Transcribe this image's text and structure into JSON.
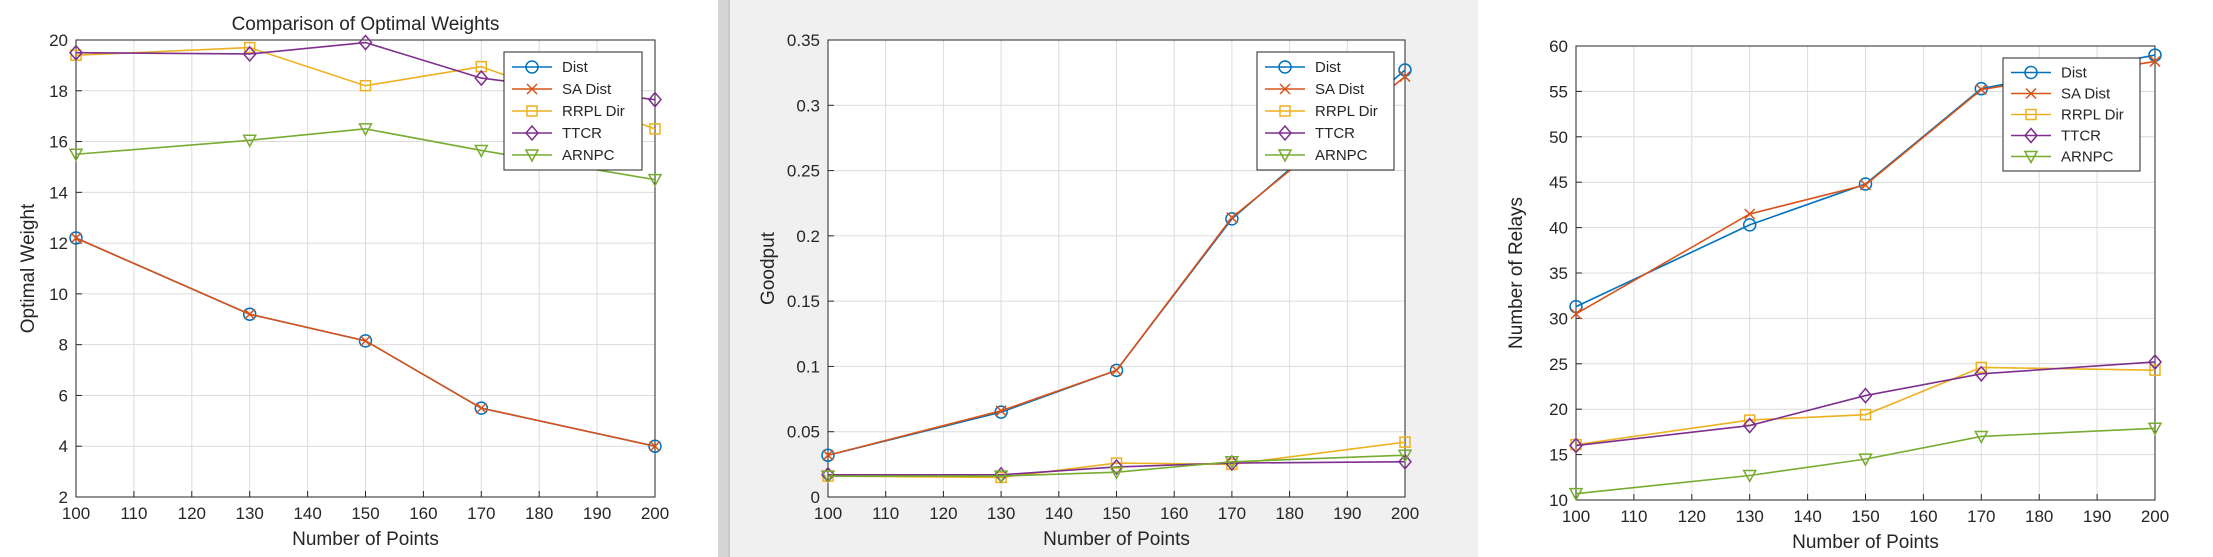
{
  "chart_data": [
    {
      "type": "line",
      "title": "Comparison of Optimal Weights",
      "xlabel": "Number of Points",
      "ylabel": "Optimal Weight",
      "xlim": [
        100,
        200
      ],
      "ylim": [
        2,
        20
      ],
      "xticks": [
        100,
        110,
        120,
        130,
        140,
        150,
        160,
        170,
        180,
        190,
        200
      ],
      "yticks": [
        2,
        4,
        6,
        8,
        10,
        12,
        14,
        16,
        18,
        20
      ],
      "grid": true,
      "legend_position": "top-right",
      "x": [
        100,
        130,
        150,
        170,
        200
      ],
      "series": [
        {
          "name": "Dist",
          "color": "#0072BD",
          "marker": "circle",
          "values": [
            12.2,
            9.2,
            8.15,
            5.5,
            4.0
          ]
        },
        {
          "name": "SA Dist",
          "color": "#D95319",
          "marker": "x",
          "values": [
            12.2,
            9.2,
            8.15,
            5.5,
            4.0
          ]
        },
        {
          "name": "RRPL Dir",
          "color": "#EDB120",
          "marker": "square",
          "values": [
            19.4,
            19.7,
            18.2,
            18.95,
            16.5
          ]
        },
        {
          "name": "TTCR",
          "color": "#7E2F8E",
          "marker": "diamond",
          "values": [
            19.5,
            19.45,
            19.9,
            18.5,
            17.65
          ]
        },
        {
          "name": "ARNPC",
          "color": "#77AC30",
          "marker": "triangle-down",
          "values": [
            15.5,
            16.05,
            16.5,
            15.65,
            14.5
          ]
        }
      ]
    },
    {
      "type": "line",
      "title": "",
      "xlabel": "Number of Points",
      "ylabel": "Goodput",
      "xlim": [
        100,
        200
      ],
      "ylim": [
        0,
        0.35
      ],
      "xticks": [
        100,
        110,
        120,
        130,
        140,
        150,
        160,
        170,
        180,
        190,
        200
      ],
      "yticks": [
        0,
        0.05,
        0.1,
        0.15,
        0.2,
        0.25,
        0.3,
        0.35
      ],
      "ytick_labels": [
        "0",
        "0.05",
        "0.1",
        "0.15",
        "0.2",
        "0.25",
        "0.3",
        "0.35"
      ],
      "grid": true,
      "legend_position": "top-right",
      "x": [
        100,
        130,
        150,
        170,
        200
      ],
      "series": [
        {
          "name": "Dist",
          "color": "#0072BD",
          "marker": "circle",
          "values": [
            0.032,
            0.065,
            0.097,
            0.213,
            0.327
          ]
        },
        {
          "name": "SA Dist",
          "color": "#D95319",
          "marker": "x",
          "values": [
            0.032,
            0.066,
            0.097,
            0.214,
            0.322
          ]
        },
        {
          "name": "RRPL Dir",
          "color": "#EDB120",
          "marker": "square",
          "values": [
            0.016,
            0.015,
            0.026,
            0.025,
            0.042
          ]
        },
        {
          "name": "TTCR",
          "color": "#7E2F8E",
          "marker": "diamond",
          "values": [
            0.017,
            0.017,
            0.023,
            0.026,
            0.027
          ]
        },
        {
          "name": "ARNPC",
          "color": "#77AC30",
          "marker": "triangle-down",
          "values": [
            0.016,
            0.016,
            0.019,
            0.027,
            0.032
          ]
        }
      ]
    },
    {
      "type": "line",
      "title": "",
      "xlabel": "Number of Points",
      "ylabel": "Number of Relays",
      "xlim": [
        100,
        200
      ],
      "ylim": [
        10,
        60
      ],
      "xticks": [
        100,
        110,
        120,
        130,
        140,
        150,
        160,
        170,
        180,
        190,
        200
      ],
      "yticks": [
        10,
        15,
        20,
        25,
        30,
        35,
        40,
        45,
        50,
        55,
        60
      ],
      "grid": true,
      "legend_position": "top-right",
      "x": [
        100,
        130,
        150,
        170,
        200
      ],
      "series": [
        {
          "name": "Dist",
          "color": "#0072BD",
          "marker": "circle",
          "values": [
            31.3,
            40.3,
            44.8,
            55.3,
            59.0
          ]
        },
        {
          "name": "SA Dist",
          "color": "#D95319",
          "marker": "x",
          "values": [
            30.5,
            41.5,
            44.7,
            55.2,
            58.3
          ]
        },
        {
          "name": "RRPL Dir",
          "color": "#EDB120",
          "marker": "square",
          "values": [
            16.1,
            18.8,
            19.4,
            24.6,
            24.3
          ]
        },
        {
          "name": "TTCR",
          "color": "#7E2F8E",
          "marker": "diamond",
          "values": [
            16.0,
            18.2,
            21.5,
            23.9,
            25.2
          ]
        },
        {
          "name": "ARNPC",
          "color": "#77AC30",
          "marker": "triangle-down",
          "values": [
            10.7,
            12.7,
            14.5,
            17.0,
            17.9
          ]
        }
      ]
    }
  ]
}
